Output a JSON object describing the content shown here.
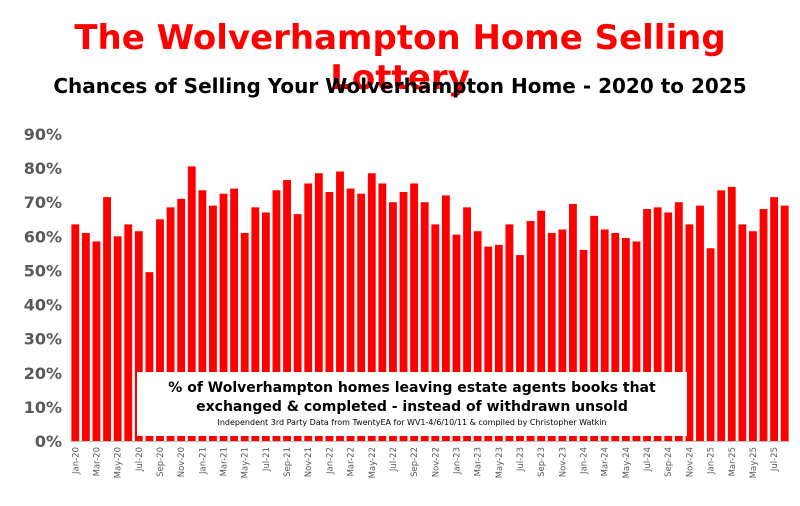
{
  "colors": {
    "bar": "#ff0000",
    "title": "#ff0000",
    "text": "#000000",
    "axis_text": "#595959"
  },
  "chart_data": {
    "type": "bar",
    "title": "The Wolverhampton Home Selling Lottery",
    "subtitle": "Chances of Selling Your Wolverhampton Home - 2020 to 2025",
    "ylim": [
      0,
      90
    ],
    "yticks": [
      "0%",
      "10%",
      "20%",
      "30%",
      "40%",
      "50%",
      "60%",
      "70%",
      "80%",
      "90%"
    ],
    "grid": false,
    "categories": [
      "Jan-20",
      "Feb-20",
      "Mar-20",
      "Apr-20",
      "May-20",
      "Jun-20",
      "Jul-20",
      "Aug-20",
      "Sep-20",
      "Oct-20",
      "Nov-20",
      "Dec-20",
      "Jan-21",
      "Feb-21",
      "Mar-21",
      "Apr-21",
      "May-21",
      "Jun-21",
      "Jul-21",
      "Aug-21",
      "Sep-21",
      "Oct-21",
      "Nov-21",
      "Dec-21",
      "Jan-22",
      "Feb-22",
      "Mar-22",
      "Apr-22",
      "May-22",
      "Jun-22",
      "Jul-22",
      "Aug-22",
      "Sep-22",
      "Oct-22",
      "Nov-22",
      "Dec-22",
      "Jan-23",
      "Feb-23",
      "Mar-23",
      "Apr-23",
      "May-23",
      "Jun-23",
      "Jul-23",
      "Aug-23",
      "Sep-23",
      "Oct-23",
      "Nov-23",
      "Dec-23",
      "Jan-24",
      "Feb-24",
      "Mar-24",
      "Apr-24",
      "May-24",
      "Jun-24",
      "Jul-24",
      "Aug-24",
      "Sep-24",
      "Oct-24",
      "Nov-24",
      "Dec-24",
      "Jan-25",
      "Feb-25",
      "Mar-25",
      "Apr-25",
      "May-25",
      "Jun-25",
      "Jul-25",
      "Aug-25"
    ],
    "xtick_labels": [
      "Jan-20",
      "",
      "Mar-20",
      "",
      "May-20",
      "",
      "Jul-20",
      "",
      "Sep-20",
      "",
      "Nov-20",
      "",
      "Jan-21",
      "",
      "Mar-21",
      "",
      "May-21",
      "",
      "Jul-21",
      "",
      "Sep-21",
      "",
      "Nov-21",
      "",
      "Jan-22",
      "",
      "Mar-22",
      "",
      "May-22",
      "",
      "Jul-22",
      "",
      "Sep-22",
      "",
      "Nov-22",
      "",
      "Jan-23",
      "",
      "Mar-23",
      "",
      "May-23",
      "",
      "Jul-23",
      "",
      "Sep-23",
      "",
      "Nov-23",
      "",
      "Jan-24",
      "",
      "Mar-24",
      "",
      "May-24",
      "",
      "Jul-24",
      "",
      "Sep-24",
      "",
      "Nov-24",
      "",
      "Jan-25",
      "",
      "Mar-25",
      "",
      "May-25",
      "",
      "Jul-25",
      ""
    ],
    "values": [
      63.5,
      61,
      58.5,
      71.5,
      60,
      63.5,
      61.5,
      49.5,
      65,
      68.5,
      71,
      80.5,
      73.5,
      69,
      72.5,
      74,
      61,
      68.5,
      67,
      73.5,
      76.5,
      66.5,
      75.5,
      78.5,
      73,
      79,
      74,
      72.5,
      78.5,
      75.5,
      70,
      73,
      75.5,
      70,
      63.5,
      72,
      60.5,
      68.5,
      61.5,
      57,
      57.5,
      63.5,
      54.5,
      64.5,
      67.5,
      61,
      62,
      69.5,
      56,
      66,
      62,
      61,
      59.5,
      58.5,
      68,
      68.5,
      67,
      70,
      63.5,
      69,
      56.5,
      73.5,
      74.5,
      63.5,
      61.5,
      68,
      71.5,
      69
    ],
    "annotation": {
      "line1": "% of Wolverhampton homes leaving estate agents books that",
      "line2": "exchanged & completed - instead of withdrawn unsold",
      "line3": "Independent 3rd Party Data from TwentyEA for WV1-4/6/10/11 & compiled by Christopher Watkin"
    }
  }
}
